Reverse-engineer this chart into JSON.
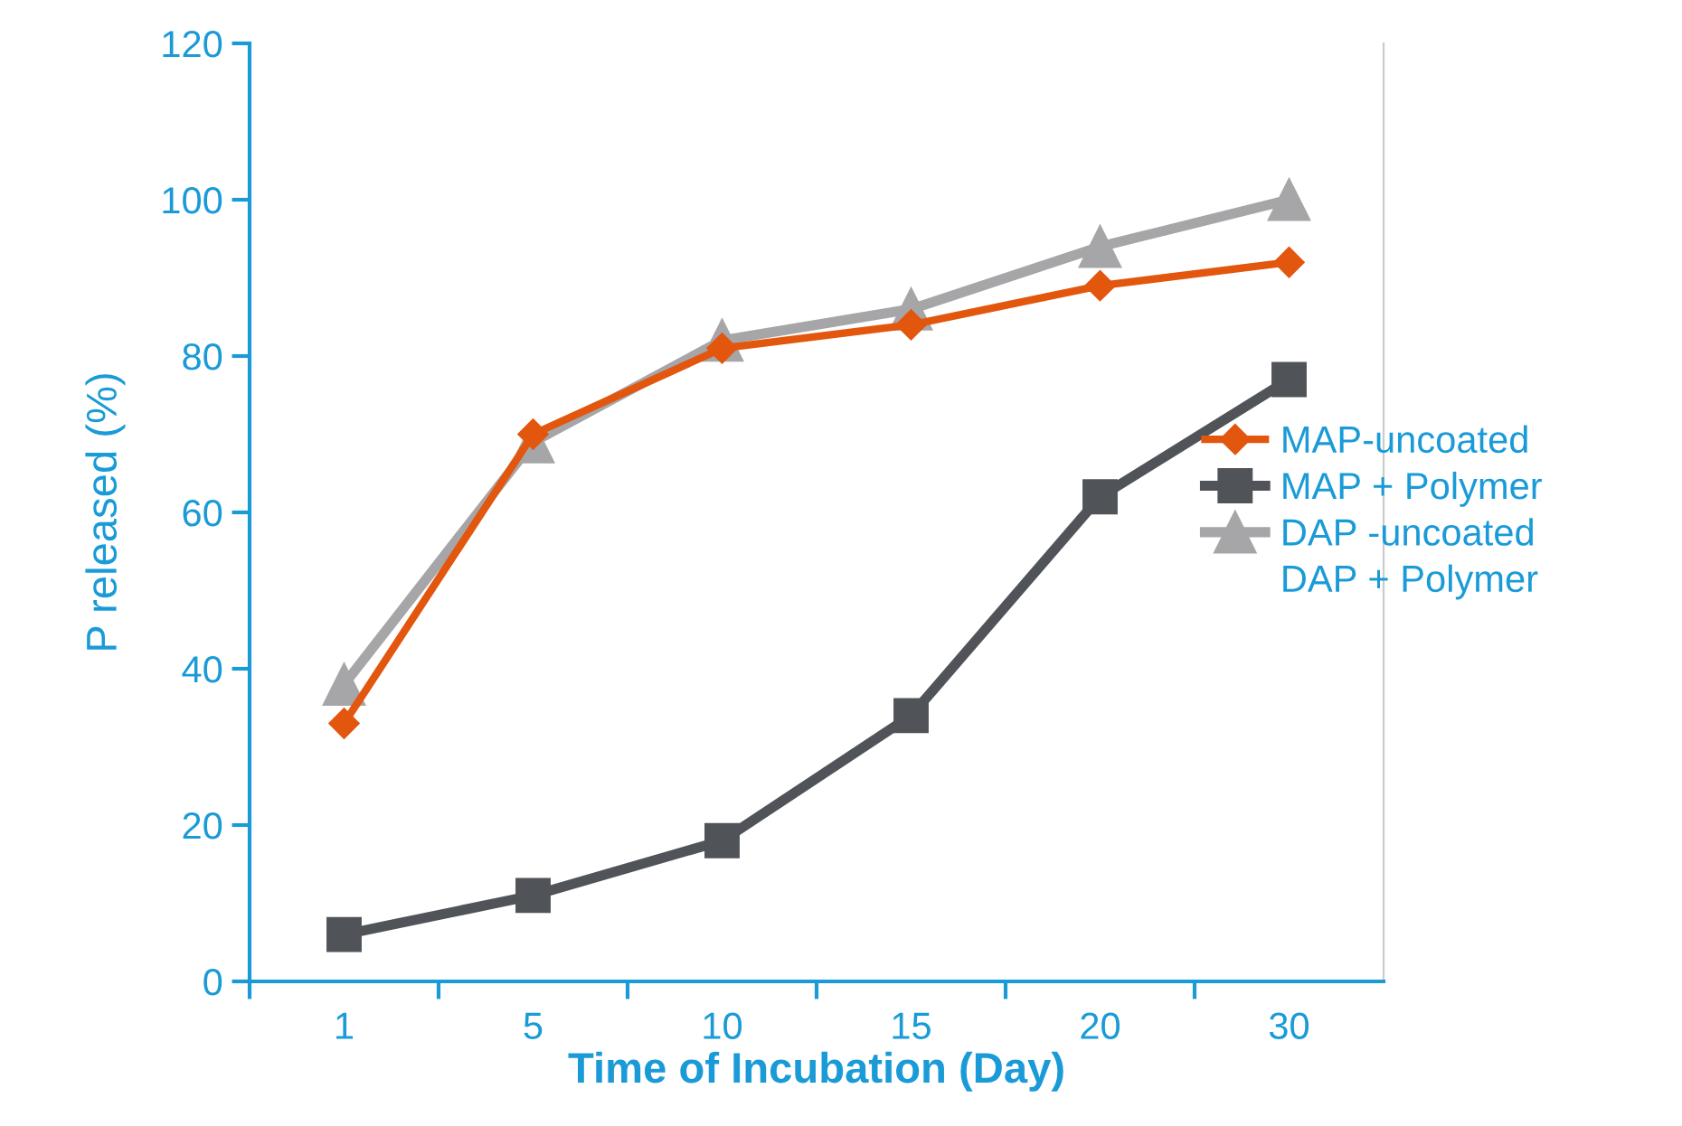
{
  "chart_data": {
    "type": "line",
    "xlabel": "Time of Incubation (Day)",
    "ylabel": "P released (%)",
    "categories": [
      "1",
      "5",
      "10",
      "15",
      "20",
      "30"
    ],
    "series": [
      {
        "name": "MAP-uncoated",
        "color": "#e2560e",
        "marker": "diamond",
        "values": [
          33,
          70,
          81,
          84,
          89,
          92
        ]
      },
      {
        "name": "MAP + Polymer",
        "color": "#505459",
        "marker": "square",
        "values": [
          6,
          11,
          18,
          34,
          62,
          77
        ]
      },
      {
        "name": "DAP -uncoated",
        "color": "#a6a6a8",
        "marker": "triangle",
        "values": [
          38,
          69,
          82,
          86,
          94,
          100
        ]
      }
    ],
    "annotations": [
      "DAP + Polymer"
    ],
    "ylim": [
      0,
      120
    ],
    "yticks": [
      0,
      20,
      40,
      60,
      80,
      100,
      120
    ],
    "grid": false,
    "legend": "right"
  }
}
